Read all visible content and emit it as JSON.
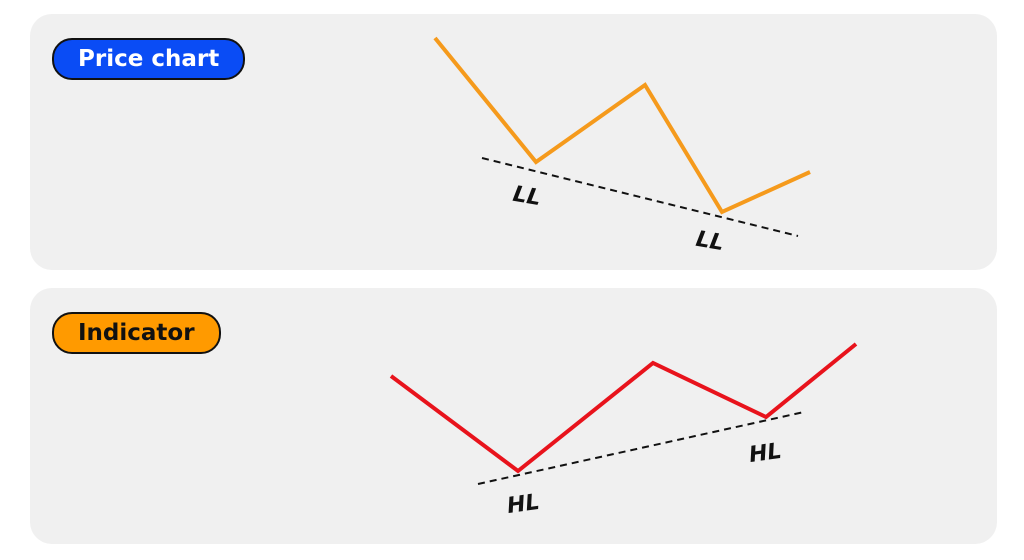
{
  "colors": {
    "panel_background": "#f0f0f0",
    "price_pill": "#0a4cf5",
    "indicator_pill": "#ff9a00",
    "price_line": "#f59a1c",
    "indicator_line": "#e8131c",
    "trendline": "#111111"
  },
  "panels": [
    {
      "id": "price",
      "title": "Price chart",
      "line_style": "orange solid line",
      "trend": "descending dashed trendline through two lows",
      "low_labels": [
        "LL",
        "LL"
      ]
    },
    {
      "id": "indicator",
      "title": "Indicator",
      "line_style": "red solid line",
      "trend": "ascending dashed trendline through two lows",
      "low_labels": [
        "HL",
        "HL"
      ]
    }
  ]
}
